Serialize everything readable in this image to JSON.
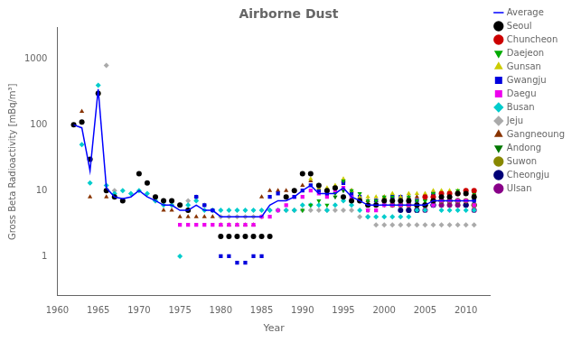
{
  "chart_data": {
    "type": "scatter",
    "title": "Airborne Dust",
    "xlabel": "Year",
    "ylabel": "Gross Beta Radioactivity [mBq/m³]",
    "log": "y",
    "grid": false,
    "legend": "right",
    "xlim": [
      1960,
      2013
    ],
    "xticks": [
      1960,
      1965,
      1970,
      1975,
      1980,
      1985,
      1990,
      1995,
      2000,
      2005,
      2010
    ],
    "ylim": [
      0.25,
      3000
    ],
    "yticks": [
      1,
      10,
      100,
      1000
    ],
    "series": [
      {
        "name": "Seoul",
        "color": "#000000",
        "marker": "circle",
        "x": [
          1962,
          1963,
          1964,
          1965,
          1966,
          1967,
          1968,
          1970,
          1971,
          1972,
          1973,
          1974,
          1975,
          1976,
          1980,
          1981,
          1982,
          1983,
          1984,
          1985,
          1986,
          1988,
          1989,
          1990,
          1991,
          1992,
          1993,
          1994,
          1995,
          1996,
          1997,
          1998,
          1999,
          2000,
          2001,
          2002,
          2003,
          2004,
          2005,
          2006,
          2007,
          2008,
          2009,
          2010,
          2011
        ],
        "values": [
          100,
          110,
          30,
          300,
          10,
          8,
          7,
          18,
          13,
          8,
          7,
          7,
          6,
          5,
          2,
          2,
          2,
          2,
          2,
          2,
          2,
          8,
          10,
          18,
          18,
          12,
          10,
          11,
          8,
          7,
          7,
          6,
          6,
          7,
          7,
          7,
          7,
          6,
          6,
          7,
          8,
          8,
          9,
          9,
          8
        ]
      },
      {
        "name": "Chuncheon",
        "color": "#cc0000",
        "marker": "circle",
        "x": [
          2005,
          2006,
          2007,
          2008,
          2009,
          2010,
          2011
        ],
        "values": [
          8,
          8,
          9,
          9,
          9,
          10,
          10
        ]
      },
      {
        "name": "Daejeon",
        "color": "#00aa00",
        "marker": "triangle_down",
        "x": [
          1990,
          1991,
          1992,
          1993,
          1994,
          1995,
          1996,
          1997,
          1998,
          1999,
          2000,
          2001,
          2002,
          2003,
          2004,
          2005,
          2006,
          2007,
          2008,
          2009,
          2010,
          2011
        ],
        "values": [
          5,
          6,
          7,
          6,
          9,
          14,
          10,
          9,
          7,
          7,
          8,
          8,
          7,
          8,
          7,
          7,
          9,
          9,
          9,
          10,
          9,
          9
        ]
      },
      {
        "name": "Gunsan",
        "color": "#cccc00",
        "marker": "triangle_up",
        "x": [
          1991,
          1992,
          1993,
          1994,
          1995,
          1996,
          1997,
          1998,
          1999,
          2000,
          2001,
          2002,
          2003,
          2004,
          2005,
          2006,
          2007,
          2008,
          2009,
          2010,
          2011
        ],
        "values": [
          15,
          11,
          11,
          12,
          15,
          10,
          8,
          8,
          8,
          8,
          9,
          8,
          9,
          9,
          9,
          10,
          10,
          10,
          10,
          10,
          8
        ]
      },
      {
        "name": "Gwangju",
        "color": "#0000dd",
        "marker": "square",
        "x": [
          1977,
          1978,
          1979,
          1980,
          1981,
          1982,
          1983,
          1984,
          1985,
          1986,
          1987,
          1988,
          1989,
          1990,
          1991,
          1992,
          1993,
          1994,
          1995,
          1996,
          1997,
          1998,
          1999,
          2000,
          2001,
          2002,
          2003,
          2004,
          2005,
          2006,
          2007,
          2008,
          2009,
          2010,
          2011
        ],
        "values": [
          8,
          6,
          5,
          1,
          1,
          0.8,
          0.8,
          1,
          1,
          8,
          9,
          8,
          8,
          10,
          12,
          10,
          9,
          11,
          13,
          9,
          8,
          6,
          7,
          7,
          8,
          8,
          7,
          7,
          8,
          9,
          8,
          9,
          9,
          9,
          7
        ]
      },
      {
        "name": "Daegu",
        "color": "#ee00ee",
        "marker": "square",
        "x": [
          1975,
          1976,
          1977,
          1978,
          1979,
          1980,
          1981,
          1982,
          1983,
          1984,
          1985,
          1986,
          1987,
          1988,
          1989,
          1990,
          1991,
          1992,
          1993,
          1994,
          1995,
          1996,
          1997,
          1998,
          1999,
          2000,
          2001,
          2002,
          2003,
          2004,
          2005,
          2006,
          2007,
          2008,
          2009,
          2010,
          2011
        ],
        "values": [
          3,
          3,
          3,
          3,
          3,
          3,
          3,
          3,
          3,
          3,
          4,
          4,
          5,
          6,
          8,
          8,
          10,
          9,
          8,
          10,
          11,
          8,
          7,
          5,
          5,
          6,
          6,
          6,
          6,
          6,
          6,
          6,
          7,
          7,
          7,
          7,
          6
        ]
      },
      {
        "name": "Busan",
        "color": "#00cccc",
        "marker": "diamond",
        "x": [
          1963,
          1964,
          1965,
          1966,
          1967,
          1968,
          1969,
          1970,
          1971,
          1972,
          1973,
          1974,
          1975,
          1976,
          1977,
          1978,
          1979,
          1980,
          1981,
          1982,
          1983,
          1984,
          1985,
          1986,
          1987,
          1988,
          1989,
          1990,
          1991,
          1992,
          1993,
          1994,
          1995,
          1996,
          1997,
          1998,
          1999,
          2000,
          2001,
          2002,
          2003,
          2004,
          2005,
          2006,
          2007,
          2008,
          2009,
          2010,
          2011
        ],
        "values": [
          50,
          13,
          400,
          12,
          9,
          10,
          9,
          10,
          9,
          7,
          6,
          6,
          1,
          6,
          7,
          5,
          5,
          5,
          5,
          5,
          5,
          5,
          5,
          5,
          5,
          5,
          5,
          6,
          6,
          6,
          5,
          6,
          7,
          6,
          5,
          4,
          4,
          4,
          4,
          4,
          4,
          5,
          5,
          6,
          5,
          5,
          5,
          5,
          5
        ]
      },
      {
        "name": "Jeju",
        "color": "#aaaaaa",
        "marker": "diamond",
        "x": [
          1966,
          1967,
          1972,
          1973,
          1974,
          1975,
          1976,
          1977,
          1978,
          1979,
          1980,
          1981,
          1982,
          1983,
          1984,
          1985,
          1986,
          1987,
          1988,
          1989,
          1990,
          1991,
          1992,
          1993,
          1994,
          1995,
          1996,
          1997,
          1998,
          1999,
          2000,
          2001,
          2002,
          2003,
          2004,
          2005,
          2006,
          2007,
          2008,
          2009,
          2010,
          2011
        ],
        "values": [
          800,
          10,
          7,
          7,
          6,
          6,
          7,
          8,
          6,
          5,
          4,
          4,
          4,
          4,
          4,
          4,
          5,
          5,
          5,
          5,
          5,
          5,
          5,
          5,
          5,
          5,
          5,
          4,
          4,
          3,
          3,
          3,
          3,
          3,
          3,
          3,
          3,
          3,
          3,
          3,
          3,
          3
        ]
      },
      {
        "name": "Gangneoung",
        "color": "#883300",
        "marker": "triangle_up",
        "x": [
          1963,
          1964,
          1965,
          1966,
          1973,
          1974,
          1975,
          1976,
          1977,
          1978,
          1979,
          1980,
          1981,
          1982,
          1983,
          1984,
          1985,
          1986,
          1987,
          1988,
          1989,
          1990,
          1991,
          1992,
          1993,
          1994,
          1995,
          1996,
          1997,
          1998,
          1999,
          2000,
          2001,
          2002,
          2003,
          2004,
          2005,
          2006,
          2007,
          2008,
          2009,
          2010,
          2011
        ],
        "values": [
          160,
          8,
          300,
          8,
          5,
          5,
          4,
          4,
          4,
          4,
          4,
          3,
          3,
          3,
          3,
          3,
          8,
          10,
          10,
          10,
          10,
          12,
          14,
          12,
          10,
          11,
          14,
          10,
          8,
          7,
          7,
          8,
          8,
          8,
          8,
          8,
          8,
          9,
          9,
          9,
          9,
          9,
          9
        ]
      },
      {
        "name": "Andong",
        "color": "#007700",
        "marker": "triangle_down",
        "x": [
          1994,
          1995,
          1996,
          1997,
          1998,
          1999,
          2000,
          2001,
          2002,
          2003,
          2004,
          2005,
          2006,
          2007,
          2008,
          2009,
          2010,
          2011
        ],
        "values": [
          8,
          10,
          8,
          7,
          5,
          6,
          6,
          6,
          6,
          6,
          6,
          7,
          7,
          7,
          7,
          7,
          7,
          7
        ]
      },
      {
        "name": "Suwon",
        "color": "#888800",
        "marker": "circle",
        "x": [
          2001,
          2002,
          2003,
          2004,
          2005,
          2006,
          2007,
          2008,
          2009,
          2010,
          2011
        ],
        "values": [
          6,
          6,
          6,
          6,
          6,
          7,
          7,
          7,
          7,
          7,
          6
        ]
      },
      {
        "name": "Cheongju",
        "color": "#000077",
        "marker": "circle",
        "x": [
          2002,
          2003,
          2004,
          2005,
          2006,
          2007,
          2008,
          2009,
          2010,
          2011
        ],
        "values": [
          5,
          5,
          5,
          6,
          6,
          7,
          7,
          7,
          6,
          6
        ]
      },
      {
        "name": "Ulsan",
        "color": "#880088",
        "marker": "circle",
        "x": [
          2003,
          2004,
          2005,
          2006,
          2007,
          2008,
          2009,
          2010,
          2011
        ],
        "values": [
          5,
          5,
          5,
          6,
          6,
          6,
          6,
          6,
          5
        ]
      },
      {
        "name": "Average",
        "color": "blue",
        "type": "line",
        "x": [
          1962,
          1963,
          1964,
          1965,
          1966,
          1967,
          1968,
          1969,
          1970,
          1971,
          1972,
          1973,
          1974,
          1975,
          1976,
          1977,
          1978,
          1979,
          1980,
          1981,
          1982,
          1983,
          1984,
          1985,
          1986,
          1987,
          1988,
          1989,
          1990,
          1991,
          1992,
          1993,
          1994,
          1995,
          1996,
          1997,
          1998,
          1999,
          2000,
          2001,
          2002,
          2003,
          2004,
          2005,
          2006,
          2007,
          2008,
          2009,
          2010,
          2011
        ],
        "values": [
          100,
          90,
          20,
          350,
          11,
          8,
          7.5,
          8,
          10,
          8,
          7,
          6,
          6,
          5,
          5,
          6,
          5,
          5,
          4,
          4,
          4,
          4,
          4,
          4,
          6,
          7,
          7,
          8,
          10,
          12,
          9,
          9,
          9,
          11,
          8,
          7,
          6,
          6,
          6,
          6,
          6,
          6,
          6,
          6,
          7,
          7,
          7,
          7,
          7,
          7
        ]
      }
    ]
  }
}
